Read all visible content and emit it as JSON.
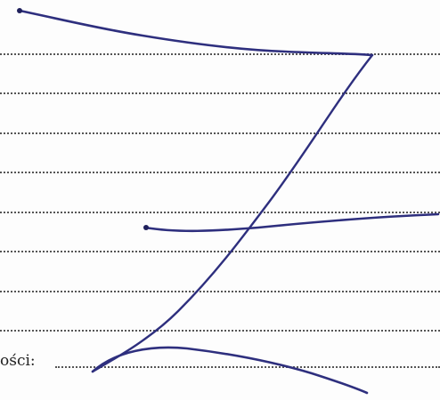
{
  "form": {
    "last_line_label": "ości:"
  },
  "strike_mark": {
    "icon": "z-strikethrough-icon",
    "ink_color": "#2e2f7e"
  }
}
